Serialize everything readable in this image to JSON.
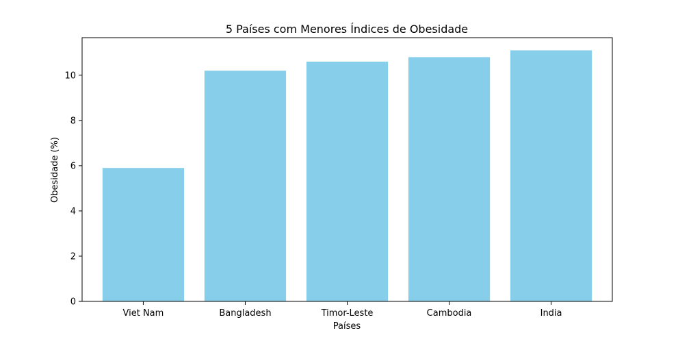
{
  "chart_data": {
    "type": "bar",
    "title": "5 Países com Menores Índices de Obesidade",
    "xlabel": "Países",
    "ylabel": "Obesidade (%)",
    "categories": [
      "Viet Nam",
      "Bangladesh",
      "Timor-Leste",
      "Cambodia",
      "India"
    ],
    "values": [
      5.9,
      10.2,
      10.6,
      10.8,
      11.1
    ],
    "ylim": [
      0,
      11.66
    ],
    "yticks": [
      0,
      2,
      4,
      6,
      8,
      10
    ],
    "bar_color": "#87CEEB",
    "grid": false,
    "legend": "none"
  }
}
